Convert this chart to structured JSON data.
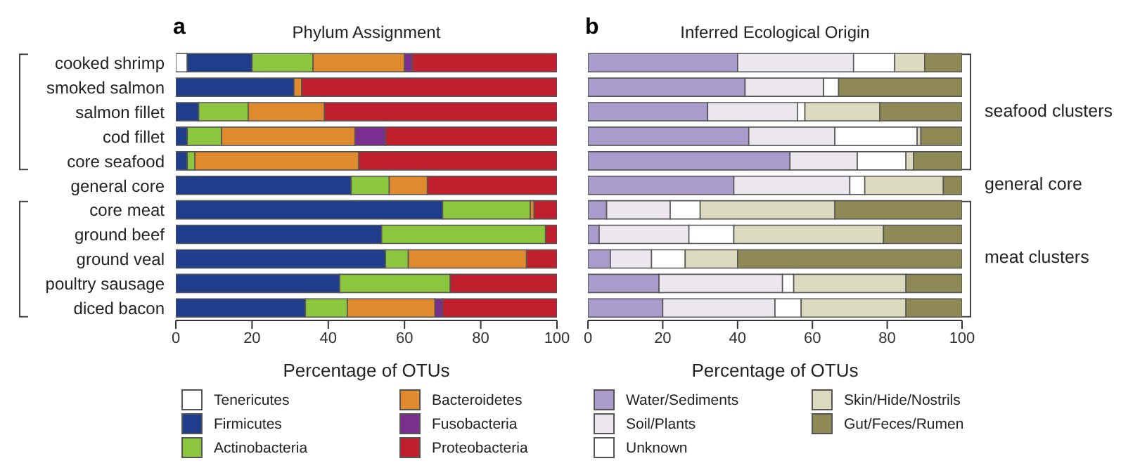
{
  "chart_data": [
    {
      "type": "bar",
      "orientation": "horizontal",
      "stacked": true,
      "title": "Phylum Assignment",
      "xlabel": "Percentage of OTUs",
      "categories": [
        "cooked shrimp",
        "smoked salmon",
        "salmon fillet",
        "cod fillet",
        "core seafood",
        "general core",
        "core meat",
        "ground beef",
        "ground veal",
        "poultry sausage",
        "diced bacon"
      ],
      "xlim": [
        0,
        100
      ],
      "xticks": [
        0,
        20,
        40,
        60,
        80,
        100
      ],
      "legend": "bottom",
      "grid": false,
      "annotations": [
        "a"
      ],
      "series": [
        {
          "name": "Tenericutes",
          "color": "#ffffff",
          "values": [
            3,
            0,
            0,
            0,
            0,
            0,
            0,
            0,
            0,
            0,
            0
          ]
        },
        {
          "name": "Firmicutes",
          "color": "#1f3d8a",
          "values": [
            17,
            31,
            6,
            3,
            3,
            46,
            70,
            54,
            55,
            43,
            34
          ]
        },
        {
          "name": "Actinobacteria",
          "color": "#8cc63f",
          "values": [
            16,
            0,
            13,
            9,
            2,
            10,
            23,
            43,
            6,
            29,
            11
          ]
        },
        {
          "name": "Bacteroidetes",
          "color": "#e08a2e",
          "values": [
            24,
            2,
            20,
            35,
            43,
            10,
            1,
            0,
            31,
            0,
            23
          ]
        },
        {
          "name": "Fusobacteria",
          "color": "#7b2f8e",
          "values": [
            2,
            0,
            0,
            8,
            0,
            0,
            0,
            0,
            0,
            0,
            2
          ]
        },
        {
          "name": "Proteobacteria",
          "color": "#c0202e",
          "values": [
            38,
            67,
            61,
            45,
            52,
            34,
            6,
            3,
            8,
            28,
            30
          ]
        }
      ]
    },
    {
      "type": "bar",
      "orientation": "horizontal",
      "stacked": true,
      "title": "Inferred Ecological Origin",
      "xlabel": "Percentage of OTUs",
      "categories": [
        null,
        null,
        null,
        null,
        null,
        null,
        null,
        null,
        null,
        null,
        null
      ],
      "tick_labels": "x",
      "xlim": [
        0,
        100
      ],
      "xticks": [
        0,
        20,
        40,
        60,
        80,
        100
      ],
      "legend": "bottom",
      "grid": false,
      "annotations": [
        "b",
        "seafood clusters",
        "general core",
        "meat clusters"
      ],
      "series": [
        {
          "name": "Water/Sediments",
          "color": "#a99bcc",
          "values": [
            40,
            42,
            32,
            43,
            54,
            39,
            5,
            3,
            6,
            19,
            20
          ]
        },
        {
          "name": "Soil/Plants",
          "color": "#ece6ee",
          "values": [
            31,
            21,
            24,
            23,
            18,
            31,
            17,
            24,
            11,
            33,
            30
          ]
        },
        {
          "name": "Unknown",
          "color": "#ffffff",
          "values": [
            11,
            4,
            2,
            22,
            13,
            4,
            8,
            12,
            9,
            3,
            7
          ]
        },
        {
          "name": "Skin/Hide/Nostrils",
          "color": "#dcdbbf",
          "values": [
            8,
            0,
            20,
            1,
            2,
            21,
            36,
            40,
            14,
            30,
            28
          ]
        },
        {
          "name": "Gut/Feces/Rumen",
          "color": "#8f8a55",
          "values": [
            10,
            33,
            22,
            11,
            13,
            5,
            34,
            21,
            60,
            15,
            15
          ]
        }
      ]
    }
  ]
}
